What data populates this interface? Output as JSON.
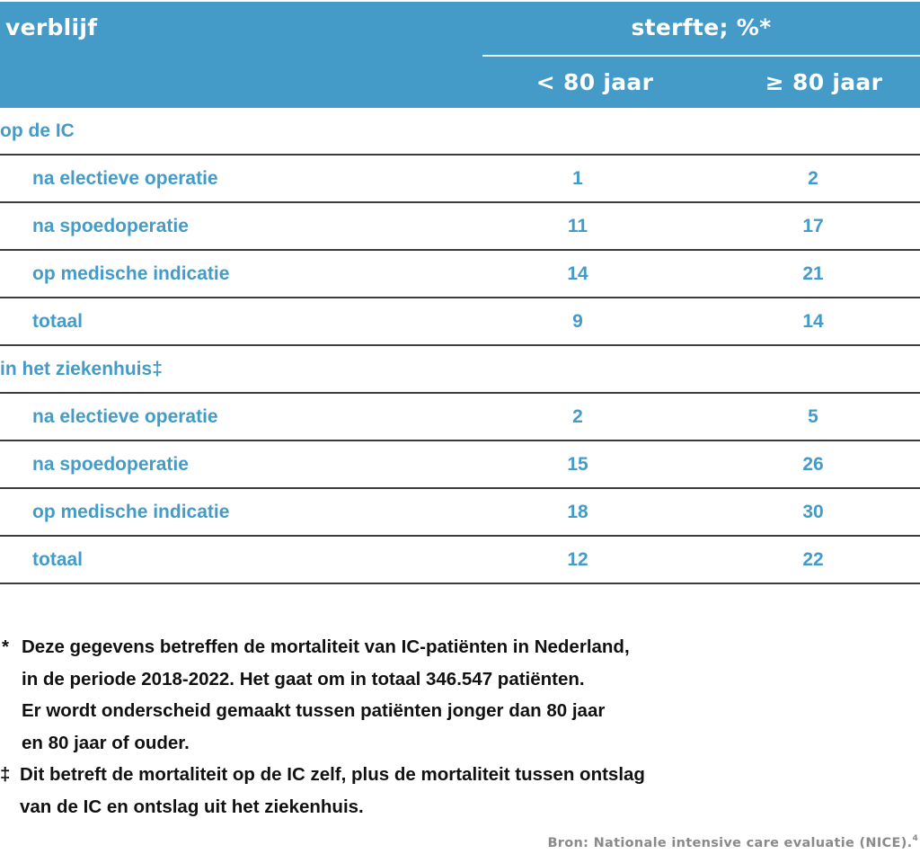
{
  "header": {
    "col_label": "verblijf",
    "group_label": "sterfte; %*",
    "subcolumns": [
      "< 80 jaar",
      "≥ 80 jaar"
    ]
  },
  "rows": [
    {
      "type": "group",
      "label": "op de IC",
      "under80": "",
      "over80": ""
    },
    {
      "type": "item",
      "label": "na electieve operatie",
      "under80": "1",
      "over80": "2"
    },
    {
      "type": "item",
      "label": "na spoedoperatie",
      "under80": "11",
      "over80": "17"
    },
    {
      "type": "item",
      "label": "op medische indicatie",
      "under80": "14",
      "over80": "21"
    },
    {
      "type": "item",
      "label": "totaal",
      "under80": "9",
      "over80": "14"
    },
    {
      "type": "group",
      "label": "in het ziekenhuis‡",
      "under80": "",
      "over80": ""
    },
    {
      "type": "item",
      "label": "na electieve operatie",
      "under80": "2",
      "over80": "5"
    },
    {
      "type": "item",
      "label": "na spoedoperatie",
      "under80": "15",
      "over80": "26"
    },
    {
      "type": "item",
      "label": "op medische indicatie",
      "under80": "18",
      "over80": "30"
    },
    {
      "type": "item",
      "label": "totaal",
      "under80": "12",
      "over80": "22"
    }
  ],
  "notes": [
    {
      "mark": "*",
      "lines": [
        "Deze gegevens betreffen de mortaliteit van IC-patiënten in Nederland,",
        "in de periode 2018-2022. Het gaat om in totaal 346.547 patiënten.",
        "Er wordt onderscheid gemaakt tussen patiënten jonger dan 80 jaar",
        "en 80 jaar of ouder."
      ]
    },
    {
      "mark": "‡",
      "lines": [
        "Dit betreft de mortaliteit op de IC zelf, plus de mortaliteit tussen ontslag",
        "van de IC en ontslag uit het ziekenhuis."
      ]
    }
  ],
  "source": {
    "text": "Bron: Nationale intensive care evaluatie (NICE).",
    "ref": "4"
  },
  "colors": {
    "header_bg": "#449bc8",
    "header_text": "#ffffff",
    "body_text": "#449bc8",
    "rule": "#3c3c3c",
    "notes_text": "#111111",
    "source_text": "#8a8a8a"
  }
}
